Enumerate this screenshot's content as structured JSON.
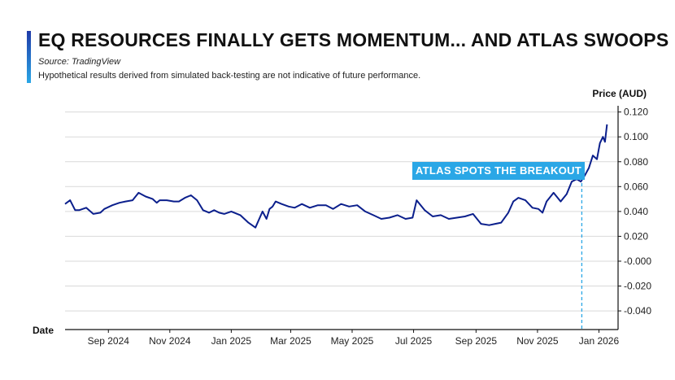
{
  "header": {
    "title": "EQ RESOURCES FINALLY GETS MOMENTUM... AND ATLAS SWOOPS IN!",
    "source": "Source: TradingView",
    "disclaimer": "Hypothetical results derived from simulated back-testing are not indicative of future performance."
  },
  "callout": {
    "text": "ATLAS SPOTS THE BREAKOUT",
    "date": "2025-12-15"
  },
  "colors": {
    "line": "#0b1f8c",
    "accent": "#2aa7e6",
    "grid": "#d9d9d9"
  },
  "chart_data": {
    "type": "line",
    "xlabel": "Date",
    "ylabel": "Price (AUD)",
    "ylim": [
      -0.055,
      0.125
    ],
    "yticks": [
      "0.120",
      "0.100",
      "0.080",
      "0.060",
      "0.040",
      "0.020",
      "-0.000",
      "-0.020",
      "-0.040"
    ],
    "xlim": [
      "2024-07-20",
      "2026-01-20"
    ],
    "xticks": [
      {
        "date": "2024-09-01",
        "label": "Sep 2024"
      },
      {
        "date": "2024-11-01",
        "label": "Nov 2024"
      },
      {
        "date": "2025-01-01",
        "label": "Jan 2025"
      },
      {
        "date": "2025-03-01",
        "label": "Mar 2025"
      },
      {
        "date": "2025-05-01",
        "label": "May 2025"
      },
      {
        "date": "2025-07-01",
        "label": "Jul 2025"
      },
      {
        "date": "2025-09-01",
        "label": "Sep 2025"
      },
      {
        "date": "2025-11-01",
        "label": "Nov 2025"
      },
      {
        "date": "2026-01-01",
        "label": "Jan 2026"
      }
    ],
    "grid": true,
    "series": [
      {
        "x": [
          "2024-07-20",
          "2024-07-25",
          "2024-07-30",
          "2024-08-03",
          "2024-08-10",
          "2024-08-17",
          "2024-08-24",
          "2024-08-28",
          "2024-09-05",
          "2024-09-12",
          "2024-09-18",
          "2024-09-25",
          "2024-10-01",
          "2024-10-08",
          "2024-10-15",
          "2024-10-19",
          "2024-10-22",
          "2024-10-29",
          "2024-11-05",
          "2024-11-10",
          "2024-11-16",
          "2024-11-22",
          "2024-11-28",
          "2024-12-04",
          "2024-12-10",
          "2024-12-15",
          "2024-12-20",
          "2024-12-25",
          "2025-01-01",
          "2025-01-10",
          "2025-01-18",
          "2025-01-25",
          "2025-02-01",
          "2025-02-05",
          "2025-02-08",
          "2025-02-11",
          "2025-02-14",
          "2025-02-20",
          "2025-02-27",
          "2025-03-05",
          "2025-03-12",
          "2025-03-20",
          "2025-03-28",
          "2025-04-05",
          "2025-04-12",
          "2025-04-20",
          "2025-04-28",
          "2025-05-06",
          "2025-05-14",
          "2025-05-22",
          "2025-05-30",
          "2025-06-07",
          "2025-06-15",
          "2025-06-23",
          "2025-06-30",
          "2025-07-04",
          "2025-07-12",
          "2025-07-20",
          "2025-07-28",
          "2025-08-05",
          "2025-08-13",
          "2025-08-21",
          "2025-08-29",
          "2025-09-06",
          "2025-09-14",
          "2025-09-20",
          "2025-09-26",
          "2025-10-03",
          "2025-10-08",
          "2025-10-13",
          "2025-10-20",
          "2025-10-27",
          "2025-11-02",
          "2025-11-06",
          "2025-11-10",
          "2025-11-17",
          "2025-11-24",
          "2025-11-30",
          "2025-12-05",
          "2025-12-10",
          "2025-12-14",
          "2025-12-18",
          "2025-12-22",
          "2025-12-26",
          "2025-12-30",
          "2026-01-02",
          "2026-01-05",
          "2026-01-07",
          "2026-01-09"
        ],
        "y": [
          0.046,
          0.049,
          0.041,
          0.041,
          0.043,
          0.038,
          0.039,
          0.042,
          0.045,
          0.047,
          0.048,
          0.049,
          0.055,
          0.052,
          0.05,
          0.047,
          0.049,
          0.049,
          0.048,
          0.048,
          0.051,
          0.053,
          0.049,
          0.041,
          0.039,
          0.041,
          0.039,
          0.038,
          0.04,
          0.037,
          0.031,
          0.027,
          0.04,
          0.034,
          0.042,
          0.044,
          0.048,
          0.046,
          0.044,
          0.043,
          0.046,
          0.043,
          0.045,
          0.045,
          0.042,
          0.046,
          0.044,
          0.045,
          0.04,
          0.037,
          0.034,
          0.035,
          0.037,
          0.034,
          0.035,
          0.049,
          0.041,
          0.036,
          0.037,
          0.034,
          0.035,
          0.036,
          0.038,
          0.03,
          0.029,
          0.03,
          0.031,
          0.039,
          0.048,
          0.051,
          0.049,
          0.043,
          0.042,
          0.039,
          0.048,
          0.055,
          0.048,
          0.054,
          0.064,
          0.066,
          0.064,
          0.069,
          0.075,
          0.085,
          0.082,
          0.095,
          0.1,
          0.096,
          0.11
        ]
      }
    ]
  }
}
